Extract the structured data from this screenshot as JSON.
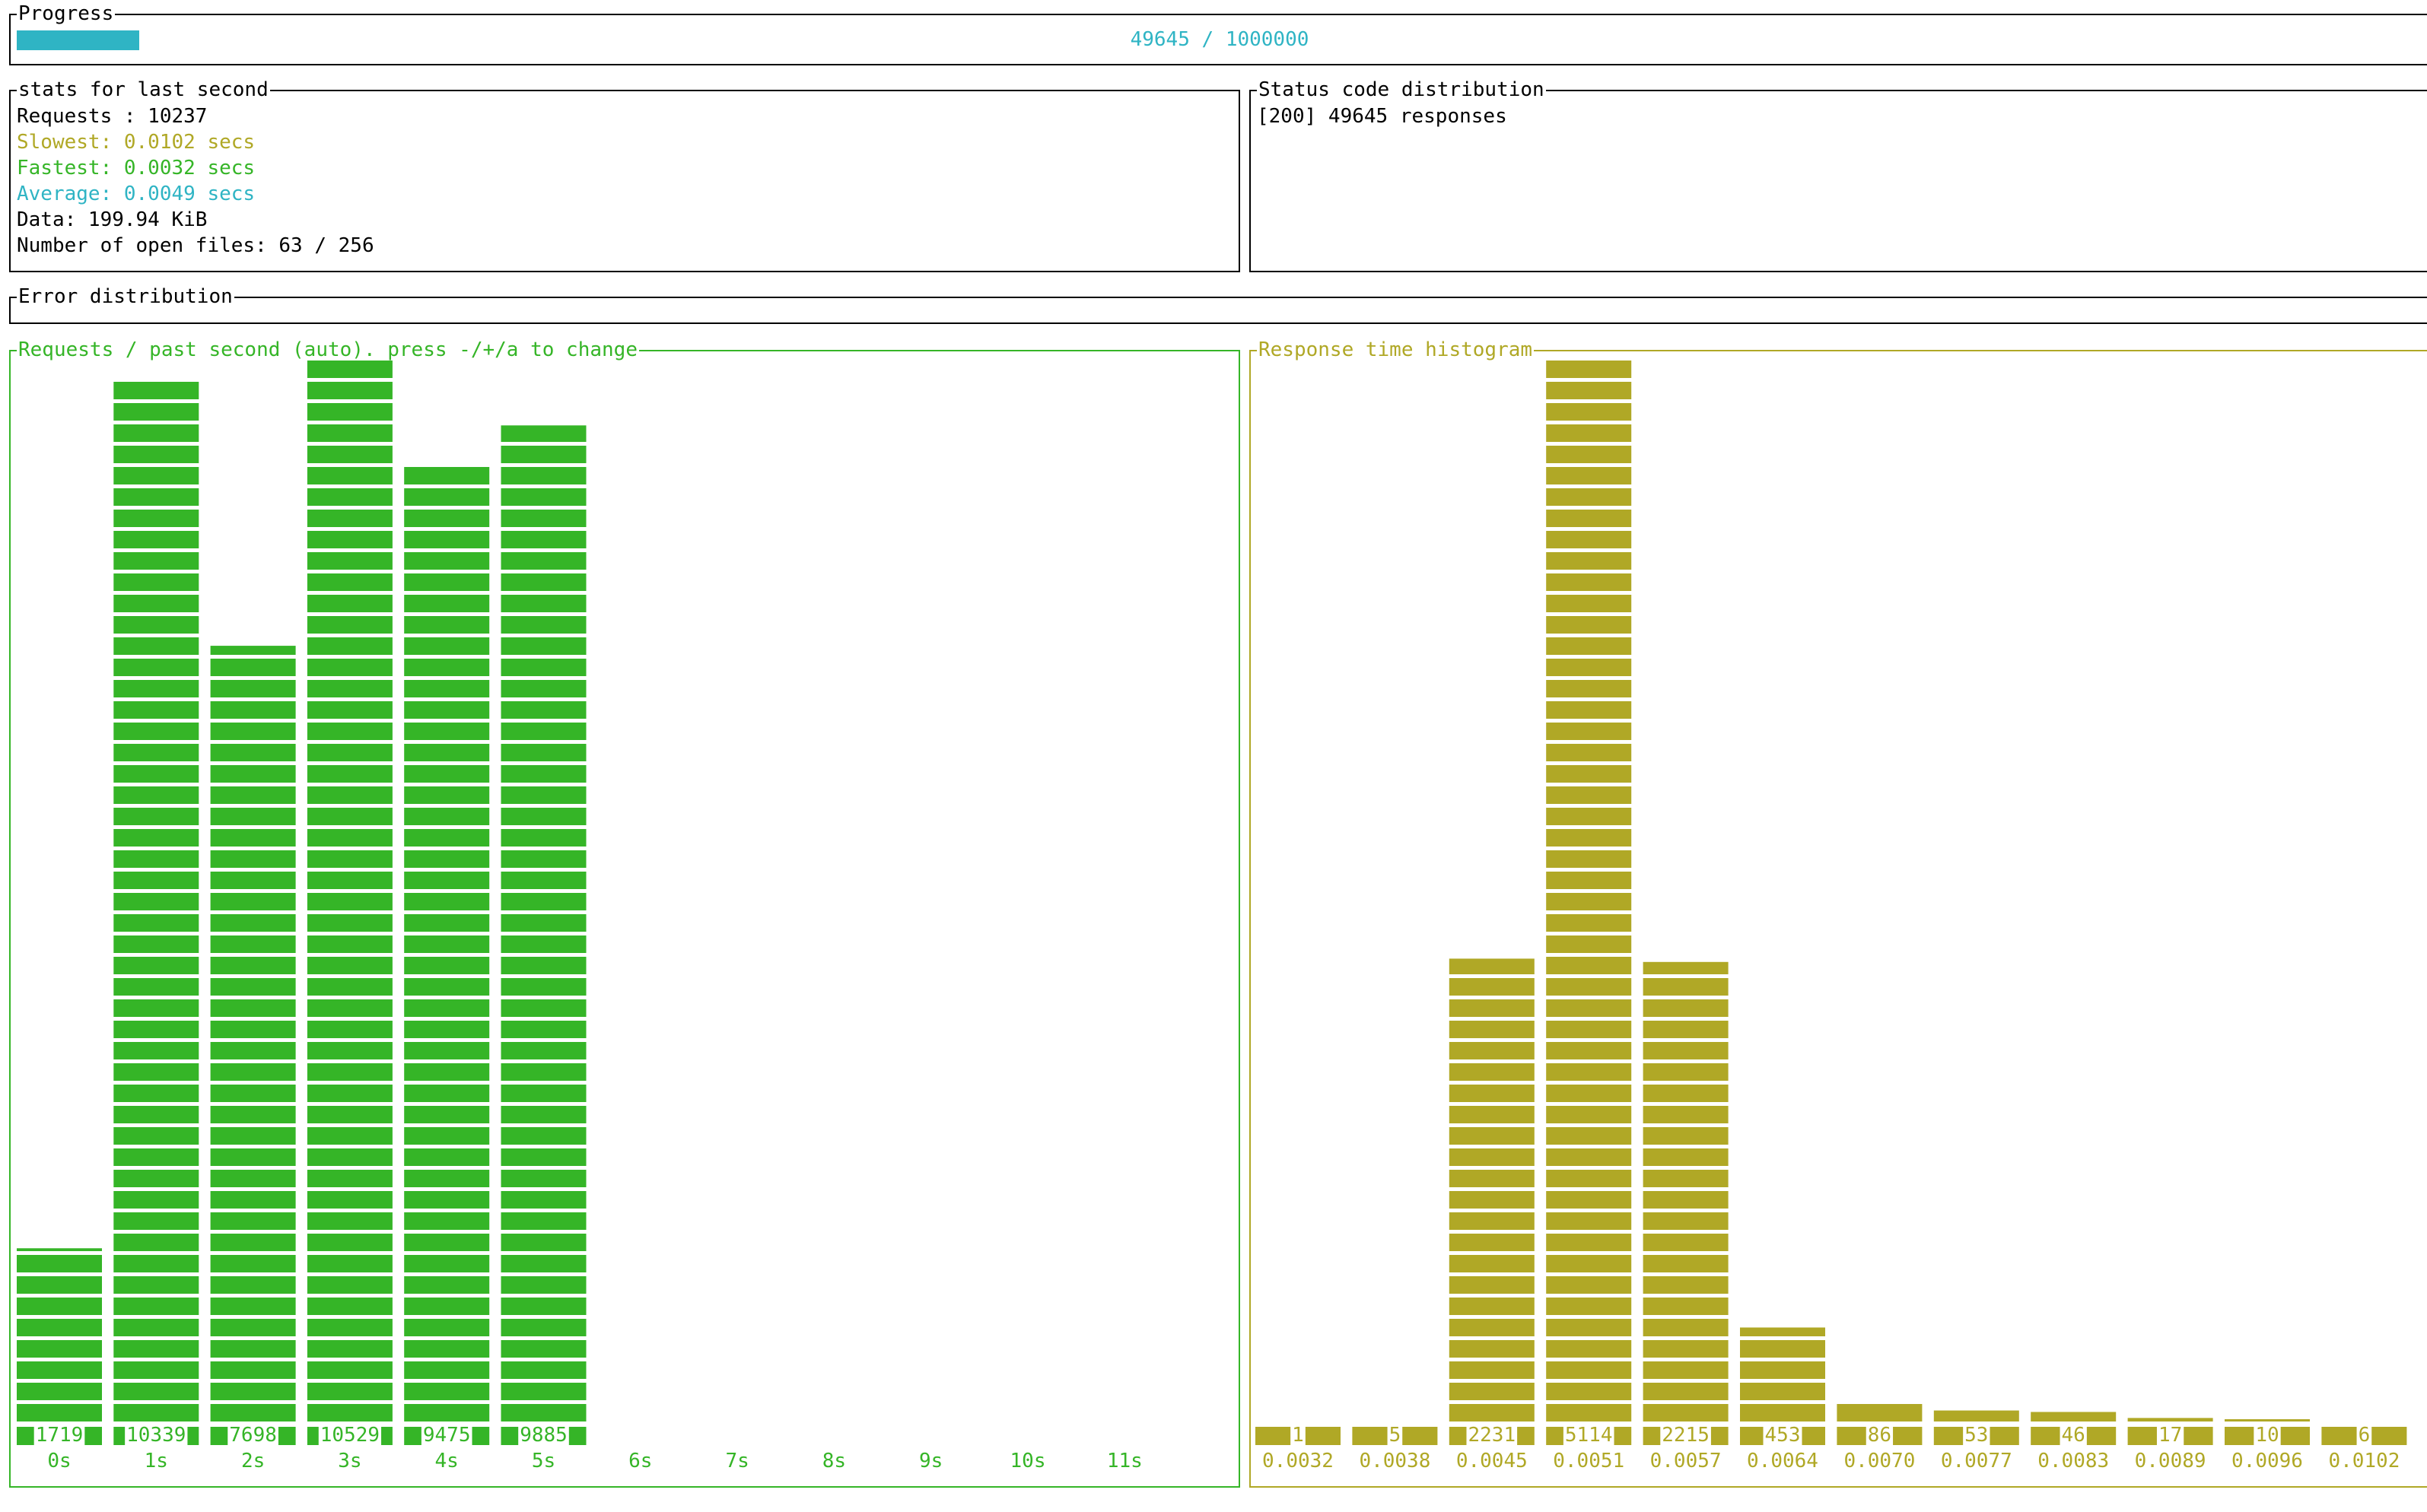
{
  "progress": {
    "title": "Progress",
    "text": "49645 / 1000000",
    "fraction": 0.049645
  },
  "stats": {
    "title": "stats for last second",
    "requests": "Requests : 10237",
    "slowest": "Slowest: 0.0102 secs",
    "fastest": "Fastest: 0.0032 secs",
    "average": "Average: 0.0049 secs",
    "data": "Data: 199.94 KiB",
    "open_files": "Number of open files: 63 / 256"
  },
  "status": {
    "title": "Status code distribution",
    "lines": [
      "[200] 49645 responses"
    ]
  },
  "errors": {
    "title": "Error distribution"
  },
  "colors": {
    "green": "#35b527",
    "yellow": "#b0a826",
    "cyan": "#2fb4c4"
  },
  "chart_data": [
    {
      "type": "bar",
      "title": "Requests / past second (auto). press -/+/a to change",
      "categories": [
        "0s",
        "1s",
        "2s",
        "3s",
        "4s",
        "5s",
        "6s",
        "7s",
        "8s",
        "9s",
        "10s",
        "11s"
      ],
      "values": [
        1719,
        10339,
        7698,
        10529,
        9475,
        9885,
        null,
        null,
        null,
        null,
        null,
        null
      ],
      "value_labels": [
        "1719",
        "10339",
        "7698",
        "10529",
        "9475",
        "9885",
        "",
        "",
        "",
        "",
        "",
        ""
      ],
      "ylim": [
        0,
        10529
      ],
      "color": "#35b527"
    },
    {
      "type": "bar",
      "title": "Response time histogram",
      "categories": [
        "0.0032",
        "0.0038",
        "0.0045",
        "0.0051",
        "0.0057",
        "0.0064",
        "0.0070",
        "0.0077",
        "0.0083",
        "0.0089",
        "0.0096",
        "0.0102"
      ],
      "values": [
        1,
        5,
        2231,
        5114,
        2215,
        453,
        86,
        53,
        46,
        17,
        10,
        6
      ],
      "value_labels": [
        "1",
        "5",
        "2231",
        "5114",
        "2215",
        "453",
        "86",
        "53",
        "46",
        "17",
        "10",
        "6"
      ],
      "ylim": [
        0,
        5114
      ],
      "color": "#b0a826"
    }
  ]
}
